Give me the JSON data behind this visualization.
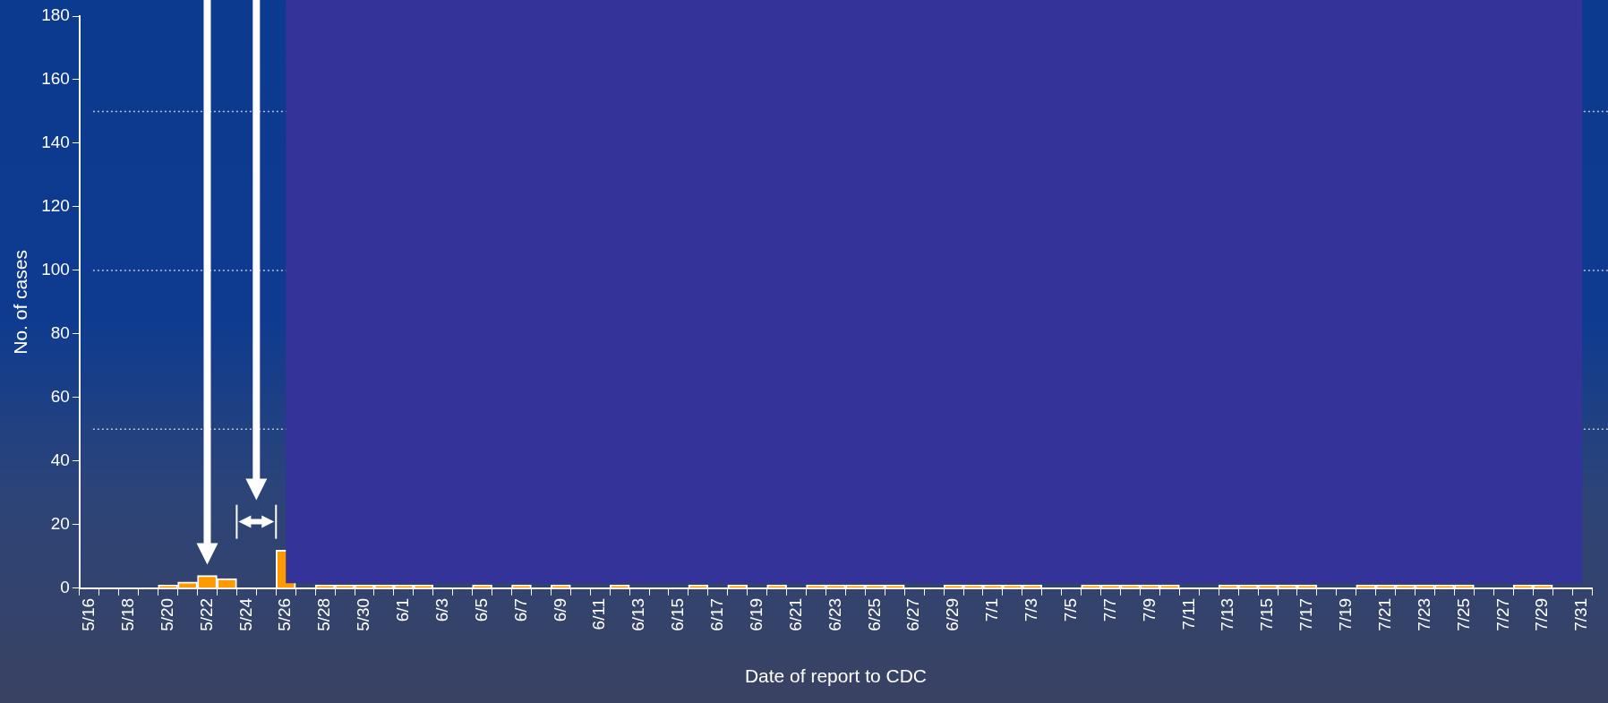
{
  "chart_data": {
    "type": "bar",
    "xlabel": "Date of report to CDC",
    "ylabel": "No. of cases",
    "categories": [
      "5/16",
      null,
      "5/18",
      null,
      "5/20",
      null,
      "5/22",
      null,
      "5/24",
      null,
      "5/26",
      null,
      "5/28",
      null,
      "5/30",
      null,
      "6/1",
      null,
      "6/3",
      null,
      "6/5",
      null,
      "6/7",
      null,
      "6/9",
      null,
      "6/11",
      null,
      "6/13",
      null,
      "6/15",
      null,
      "6/17",
      null,
      "6/19",
      null,
      "6/21",
      null,
      "6/23",
      null,
      "6/25",
      null,
      "6/27",
      null,
      "6/29",
      null,
      "7/1",
      null,
      "7/3",
      null,
      "7/5",
      null,
      "7/7",
      null,
      "7/9",
      null,
      "7/11",
      null,
      "7/13",
      null,
      "7/15",
      null,
      "7/17",
      null,
      "7/19",
      null,
      "7/21",
      null,
      "7/23",
      null,
      "7/25",
      null,
      "7/27",
      null,
      "7/29",
      null,
      "7/31"
    ],
    "values": [
      0,
      0,
      0,
      0,
      1,
      2,
      4,
      3,
      0,
      0,
      12,
      0,
      1,
      1,
      1,
      1,
      1,
      1,
      0,
      0,
      1,
      0,
      1,
      0,
      1,
      0,
      0,
      1,
      0,
      0,
      0,
      1,
      0,
      1,
      0,
      1,
      0,
      1,
      1,
      1,
      1,
      1,
      0,
      0,
      1,
      1,
      1,
      1,
      1,
      0,
      0,
      1,
      1,
      1,
      1,
      1,
      0,
      0,
      1,
      1,
      1,
      1,
      1,
      0,
      0,
      1,
      1,
      1,
      1,
      1,
      1,
      0,
      0,
      1,
      1,
      0,
      0
    ],
    "color": "#ff9900",
    "ylim": [
      0,
      180
    ],
    "yticks": [
      0,
      20,
      40,
      60,
      80,
      100,
      120,
      140,
      160,
      180
    ],
    "grid": false,
    "bands": [
      {
        "axis": "x",
        "from": "5/26",
        "to": "7/31",
        "color": "#343399"
      }
    ],
    "ref_lines": [
      {
        "axis": "y",
        "value": 150,
        "color": "#b8c4dc",
        "line_style": "dotted"
      },
      {
        "axis": "y",
        "value": 100,
        "color": "#b8c4dc",
        "line_style": "dotted"
      },
      {
        "axis": "y",
        "value": 50,
        "color": "#b8c4dc",
        "line_style": "dotted"
      }
    ]
  }
}
